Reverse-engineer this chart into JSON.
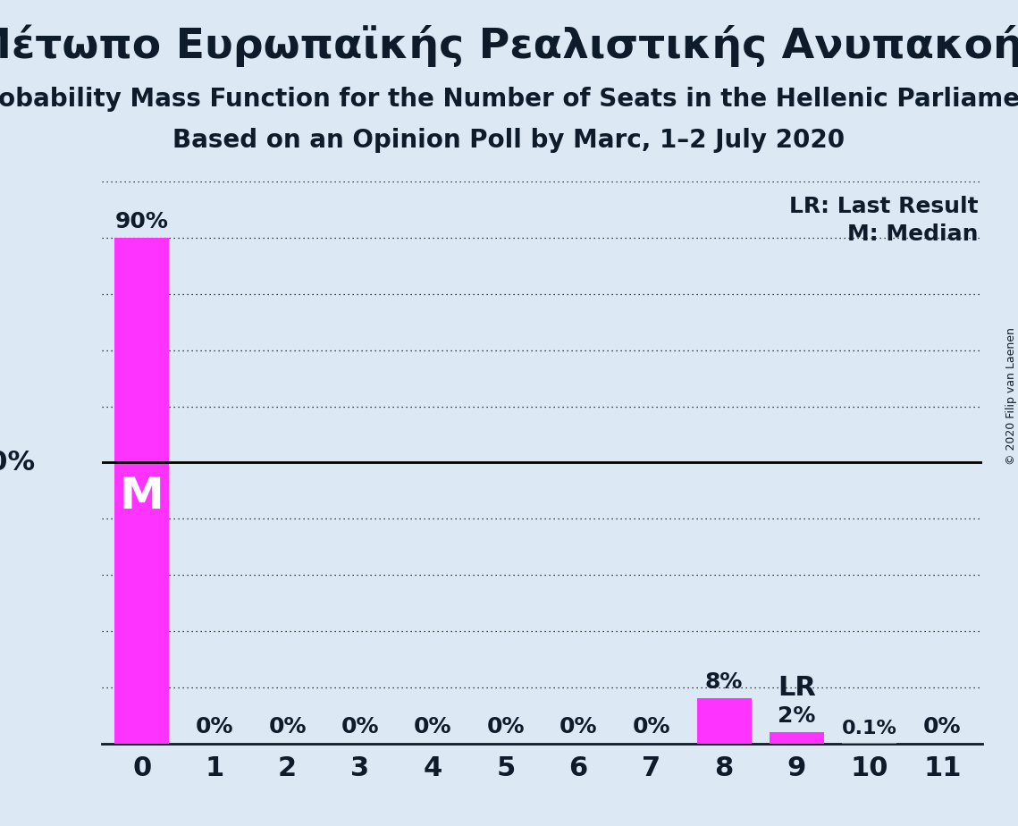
{
  "title": "Μέτωπο Ευρωπαϊκής Ρεαλιστικής Ανυπακοής",
  "subtitle1": "Probability Mass Function for the Number of Seats in the Hellenic Parliament",
  "subtitle2": "Based on an Opinion Poll by Marc, 1–2 July 2020",
  "copyright": "© 2020 Filip van Laenen",
  "categories": [
    0,
    1,
    2,
    3,
    4,
    5,
    6,
    7,
    8,
    9,
    10,
    11
  ],
  "values": [
    90.0,
    0.0,
    0.0,
    0.0,
    0.0,
    0.0,
    0.0,
    0.0,
    8.0,
    2.0,
    0.1,
    0.0
  ],
  "bar_labels": [
    "90%",
    "0%",
    "0%",
    "0%",
    "0%",
    "0%",
    "0%",
    "0%",
    "8%",
    "2%",
    "0.1%",
    "0%"
  ],
  "bar_color": "#FF33FF",
  "median_seat": 0,
  "lr_seat": 9,
  "fifty_pct_line": 50.0,
  "background_color": "#dce9f5",
  "title_fontsize": 34,
  "subtitle_fontsize": 20,
  "legend_lr": "LR: Last Result",
  "legend_m": "M: Median",
  "ylim": [
    0,
    100
  ],
  "dotted_yticks": [
    10,
    20,
    30,
    40,
    60,
    70,
    80,
    90,
    100
  ],
  "text_color": "#0d1b2a",
  "bar_width": 0.75
}
